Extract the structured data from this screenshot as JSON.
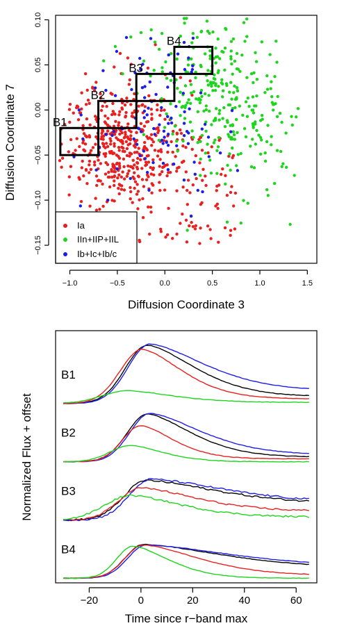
{
  "chart_data": [
    {
      "type": "scatter",
      "xlabel": "Diffusion Coordinate 3",
      "ylabel": "Diffusion Coordinate 7",
      "xlim": [
        -1.15,
        1.6
      ],
      "ylim": [
        -0.17,
        0.105
      ],
      "xticks": [
        -1.0,
        -0.5,
        0.0,
        0.5,
        1.0,
        1.5
      ],
      "xtick_labels": [
        "−1.0",
        "−0.5",
        "0.0",
        "0.5",
        "1.0",
        "1.5"
      ],
      "yticks": [
        -0.15,
        -0.1,
        -0.05,
        0.0,
        0.05,
        0.1
      ],
      "ytick_labels": [
        "−0.15",
        "−0.10",
        "−0.05",
        "0.00",
        "0.05",
        "0.10"
      ],
      "grid": false,
      "legend_position": "bottom-left",
      "series": [
        {
          "name": "Ia",
          "color": "#e8201f",
          "center": [
            -0.45,
            -0.035
          ],
          "spread": [
            0.38,
            0.035
          ],
          "approx_count": 560
        },
        {
          "name": "IIn+IIP+IIL",
          "color": "#1ed41e",
          "center": [
            0.55,
            0.02
          ],
          "spread": [
            0.38,
            0.045
          ],
          "approx_count": 330
        },
        {
          "name": "Ib+Ic+Ib/c",
          "color": "#1d1de8",
          "center": [
            -0.1,
            -0.01
          ],
          "spread": [
            0.45,
            0.045
          ],
          "approx_count": 110
        }
      ],
      "bins": [
        {
          "label": "B1",
          "x": [
            -1.1,
            -0.7
          ],
          "y": [
            -0.05,
            -0.02
          ]
        },
        {
          "label": "B2",
          "x": [
            -0.7,
            -0.3
          ],
          "y": [
            -0.02,
            0.01
          ]
        },
        {
          "label": "B3",
          "x": [
            -0.3,
            0.1
          ],
          "y": [
            0.01,
            0.04
          ]
        },
        {
          "label": "B4",
          "x": [
            0.1,
            0.5
          ],
          "y": [
            0.04,
            0.07
          ]
        }
      ]
    },
    {
      "type": "line",
      "xlabel": "Time since r−band max",
      "ylabel": "Normalized Flux + offset",
      "xlim": [
        -33,
        68
      ],
      "xticks": [
        -20,
        0,
        20,
        40,
        60
      ],
      "xtick_labels": [
        "−20",
        "0",
        "20",
        "40",
        "60"
      ],
      "grid": false,
      "groups": [
        {
          "label": "B1",
          "offset": 3.0,
          "series": [
            {
              "color": "#000000",
              "peak": 1.0,
              "t_peak": 2.5,
              "rise": 12,
              "fall": 26,
              "tail": 0.12
            },
            {
              "color": "#1d1de8",
              "peak": 1.02,
              "t_peak": 3.5,
              "rise": 12,
              "fall": 30,
              "tail": 0.22
            },
            {
              "color": "#e8201f",
              "peak": 0.93,
              "t_peak": 0.5,
              "rise": 12,
              "fall": 22,
              "tail": 0.08
            },
            {
              "color": "#1ed41e",
              "peak": 0.22,
              "t_peak": -5,
              "rise": 14,
              "fall": 24,
              "tail": 0.02
            }
          ]
        },
        {
          "label": "B2",
          "offset": 2.0,
          "series": [
            {
              "color": "#000000",
              "peak": 0.82,
              "t_peak": 2.5,
              "rise": 11,
              "fall": 24,
              "tail": 0.08
            },
            {
              "color": "#1d1de8",
              "peak": 0.83,
              "t_peak": 3.5,
              "rise": 11,
              "fall": 28,
              "tail": 0.12
            },
            {
              "color": "#e8201f",
              "peak": 0.62,
              "t_peak": 0,
              "rise": 10,
              "fall": 18,
              "tail": 0.05
            },
            {
              "color": "#1ed41e",
              "peak": 0.28,
              "t_peak": -4,
              "rise": 11,
              "fall": 18,
              "tail": 0.0
            }
          ]
        },
        {
          "label": "B3",
          "offset": 1.0,
          "series": [
            {
              "color": "#000000",
              "peak": 0.68,
              "t_peak": 2.0,
              "rise": 12,
              "fall": 38,
              "tail": 0.28
            },
            {
              "color": "#1d1de8",
              "peak": 0.7,
              "t_peak": 4.0,
              "rise": 12,
              "fall": 40,
              "tail": 0.3
            },
            {
              "color": "#e8201f",
              "peak": 0.55,
              "t_peak": 0,
              "rise": 12,
              "fall": 30,
              "tail": 0.15
            },
            {
              "color": "#1ed41e",
              "peak": 0.42,
              "t_peak": -4,
              "rise": 14,
              "fall": 28,
              "tail": 0.05
            }
          ]
        },
        {
          "label": "B4",
          "offset": 0.0,
          "series": [
            {
              "color": "#000000",
              "peak": 0.58,
              "t_peak": 1.0,
              "rise": 10,
              "fall": 42,
              "tail": 0.18
            },
            {
              "color": "#1d1de8",
              "peak": 0.57,
              "t_peak": 2.0,
              "rise": 10,
              "fall": 46,
              "tail": 0.2
            },
            {
              "color": "#e8201f",
              "peak": 0.57,
              "t_peak": 1.0,
              "rise": 10,
              "fall": 30,
              "tail": 0.05
            },
            {
              "color": "#1ed41e",
              "peak": 0.55,
              "t_peak": -3.0,
              "rise": 9,
              "fall": 20,
              "tail": 0.0
            }
          ]
        }
      ]
    }
  ]
}
